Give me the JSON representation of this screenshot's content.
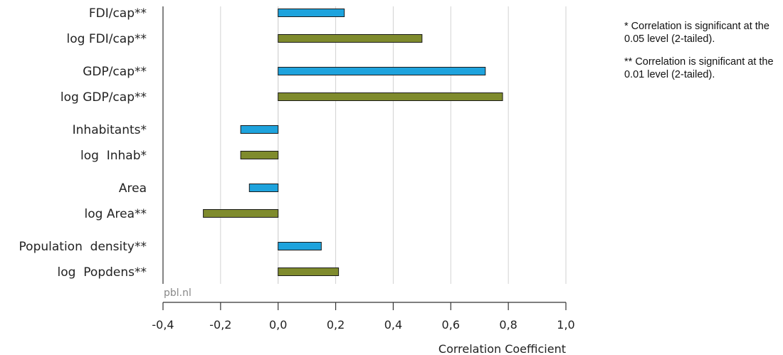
{
  "chart_data": {
    "type": "bar",
    "orientation": "horizontal",
    "xlabel": "Correlation Coefficient",
    "xlim": [
      -0.4,
      1.0
    ],
    "xticks": [
      "-0,4",
      "-0,2",
      "0,0",
      "0,2",
      "0,4",
      "0,6",
      "0,8",
      "1,0"
    ],
    "grid": true,
    "bars": [
      {
        "label": "FDI/cap**",
        "value": 0.23,
        "color": "#1ea3dd"
      },
      {
        "label": "log FDI/cap**",
        "value": 0.5,
        "color": "#7f8b2d"
      },
      {
        "label": "GDP/cap**",
        "value": 0.72,
        "color": "#1ea3dd"
      },
      {
        "label": "log GDP/cap**",
        "value": 0.78,
        "color": "#7f8b2d"
      },
      {
        "label": "Inhabitants*",
        "value": -0.13,
        "color": "#1ea3dd"
      },
      {
        "label": "log  Inhab*",
        "value": -0.13,
        "color": "#7f8b2d"
      },
      {
        "label": "Area",
        "value": -0.1,
        "color": "#1ea3dd"
      },
      {
        "label": "log Area**",
        "value": -0.26,
        "color": "#7f8b2d"
      },
      {
        "label": "Population  density**",
        "value": 0.15,
        "color": "#1ea3dd"
      },
      {
        "label": "log  Popdens**",
        "value": 0.21,
        "color": "#7f8b2d"
      }
    ]
  },
  "source": "pbl.nl",
  "notes": [
    "* Correlation is significant at the 0.05 level (2-tailed).",
    "** Correlation is significant at the 0.01 level (2-tailed)."
  ]
}
